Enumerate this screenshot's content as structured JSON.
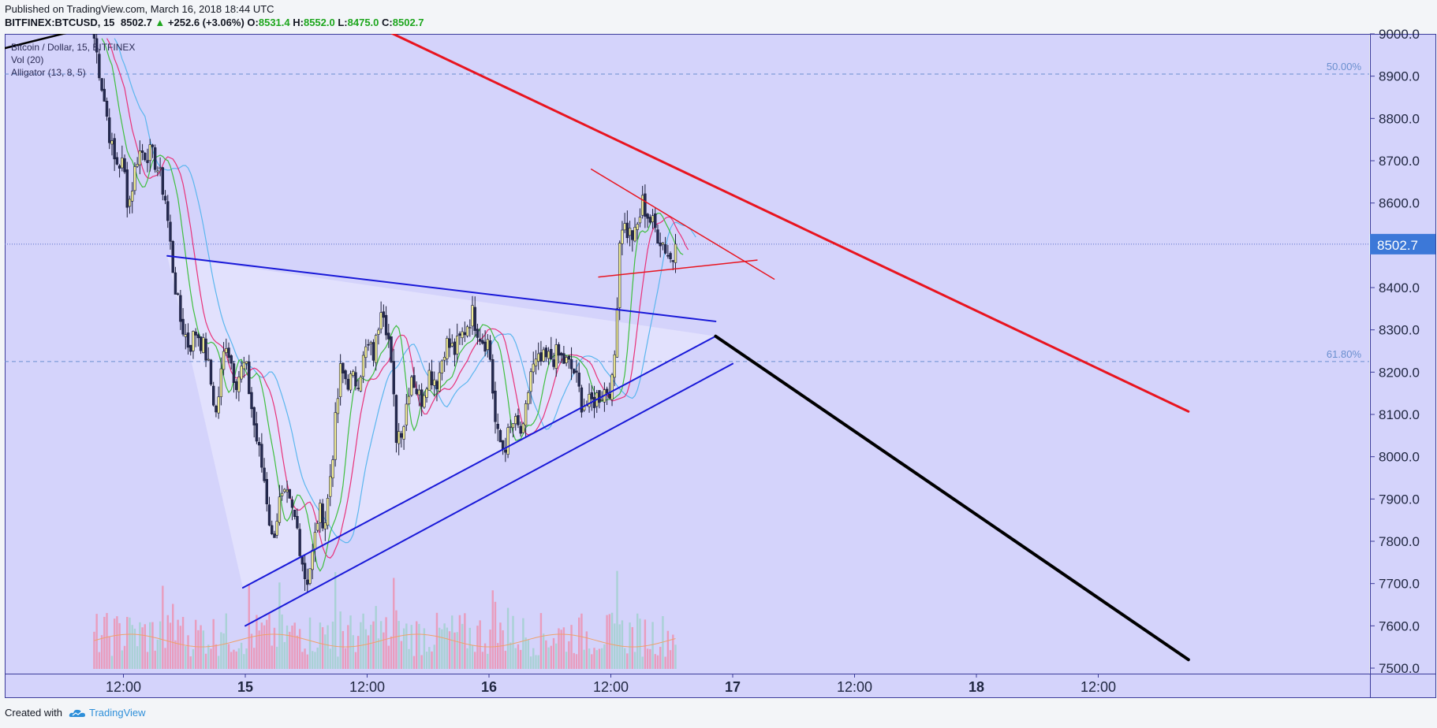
{
  "header": {
    "published": "Published on TradingView.com, March 16, 2018 18:44 UTC",
    "symbol": "BITFINEX:BTCUSD, 15",
    "last": "8502.7",
    "change": "+252.6 (+3.06%)",
    "open_label": "O:",
    "open": "8531.4",
    "high_label": "H:",
    "high": "8552.0",
    "low_label": "L:",
    "low": "8475.0",
    "close_label": "C:",
    "close": "8502.7"
  },
  "footer": {
    "created_with": "Created with",
    "brand": "TradingView"
  },
  "colors": {
    "background": "#d4d3fb",
    "bull_candle": "#f2ee93",
    "bear_candle": "#252a52",
    "red_line": "#e8141f",
    "blue_line": "#1818d8",
    "black_line": "#000000",
    "price_tag": "#3c78d8",
    "jaw": "#5bb6ef",
    "teeth": "#e8327a",
    "lips": "#3fbf3f"
  },
  "chart_data": {
    "type": "candlestick",
    "legend": [
      "Bitcoin / Dollar, 15, BITFINEX",
      "Vol (20)",
      "Alligator (13, 8, 5)"
    ],
    "ylim": [
      7500,
      9000
    ],
    "y_ticks": [
      "9000.0",
      "8900.0",
      "8800.0",
      "8700.0",
      "8600.0",
      "8500.0",
      "8400.0",
      "8300.0",
      "8200.0",
      "8100.0",
      "8000.0",
      "7900.0",
      "7800.0",
      "7700.0",
      "7600.0",
      "7500.0"
    ],
    "y_tick_values": [
      9000,
      8900,
      8800,
      8700,
      8600,
      8500,
      8400,
      8300,
      8200,
      8100,
      8000,
      7900,
      7800,
      7700,
      7600,
      7500
    ],
    "x_ticks": [
      {
        "label": "12:00",
        "t": 0.5,
        "bold": false
      },
      {
        "label": "15",
        "t": 1.0,
        "bold": true
      },
      {
        "label": "12:00",
        "t": 1.5,
        "bold": false
      },
      {
        "label": "16",
        "t": 2.0,
        "bold": true
      },
      {
        "label": "12:00",
        "t": 2.5,
        "bold": false
      },
      {
        "label": "17",
        "t": 3.0,
        "bold": true
      },
      {
        "label": "12:00",
        "t": 3.5,
        "bold": false
      },
      {
        "label": "18",
        "t": 4.0,
        "bold": true
      },
      {
        "label": "12:00",
        "t": 4.5,
        "bold": false
      }
    ],
    "t_range": [
      0.0,
      4.85
    ],
    "last_price": 8502.7,
    "last_price_label": "8502.7",
    "fib_levels": [
      {
        "label": "50.00%",
        "price": 8905
      },
      {
        "label": "61.80%",
        "price": 8225
      }
    ],
    "close_path": [
      [
        0.38,
        8990
      ],
      [
        0.42,
        8850
      ],
      [
        0.46,
        8700
      ],
      [
        0.5,
        8690
      ],
      [
        0.52,
        8590
      ],
      [
        0.56,
        8720
      ],
      [
        0.6,
        8720
      ],
      [
        0.63,
        8700
      ],
      [
        0.67,
        8620
      ],
      [
        0.7,
        8460
      ],
      [
        0.73,
        8330
      ],
      [
        0.77,
        8260
      ],
      [
        0.8,
        8300
      ],
      [
        0.84,
        8240
      ],
      [
        0.88,
        8100
      ],
      [
        0.92,
        8280
      ],
      [
        0.96,
        8180
      ],
      [
        1.0,
        8220
      ],
      [
        1.04,
        8060
      ],
      [
        1.08,
        7940
      ],
      [
        1.11,
        7800
      ],
      [
        1.14,
        7890
      ],
      [
        1.17,
        7900
      ],
      [
        1.21,
        7840
      ],
      [
        1.25,
        7700
      ],
      [
        1.28,
        7780
      ],
      [
        1.3,
        7870
      ],
      [
        1.33,
        7850
      ],
      [
        1.36,
        8020
      ],
      [
        1.39,
        8200
      ],
      [
        1.42,
        8180
      ],
      [
        1.46,
        8180
      ],
      [
        1.5,
        8260
      ],
      [
        1.53,
        8240
      ],
      [
        1.56,
        8380
      ],
      [
        1.59,
        8270
      ],
      [
        1.62,
        8050
      ],
      [
        1.65,
        8080
      ],
      [
        1.68,
        8200
      ],
      [
        1.72,
        8130
      ],
      [
        1.75,
        8200
      ],
      [
        1.79,
        8180
      ],
      [
        1.82,
        8270
      ],
      [
        1.86,
        8250
      ],
      [
        1.9,
        8300
      ],
      [
        1.93,
        8340
      ],
      [
        1.97,
        8280
      ],
      [
        2.0,
        8270
      ],
      [
        2.03,
        8050
      ],
      [
        2.06,
        8020
      ],
      [
        2.1,
        8080
      ],
      [
        2.14,
        8050
      ],
      [
        2.17,
        8200
      ],
      [
        2.2,
        8220
      ],
      [
        2.24,
        8230
      ],
      [
        2.28,
        8240
      ],
      [
        2.32,
        8220
      ],
      [
        2.35,
        8200
      ],
      [
        2.38,
        8130
      ],
      [
        2.41,
        8120
      ],
      [
        2.44,
        8140
      ],
      [
        2.48,
        8160
      ],
      [
        2.51,
        8170
      ],
      [
        2.54,
        8560
      ],
      [
        2.57,
        8530
      ],
      [
        2.6,
        8520
      ],
      [
        2.63,
        8600
      ],
      [
        2.66,
        8560
      ],
      [
        2.69,
        8530
      ],
      [
        2.72,
        8500
      ],
      [
        2.75,
        8460
      ],
      [
        2.77,
        8503
      ]
    ],
    "volume_max": 7,
    "trendlines": [
      {
        "name": "red-downtrend-line",
        "color": "red_line",
        "width": 3,
        "from": [
          1.57,
          9010
        ],
        "to": [
          4.87,
          8107
        ]
      },
      {
        "name": "red-wedge-upper-line",
        "color": "red_line",
        "width": 1.5,
        "from": [
          2.42,
          8680
        ],
        "to": [
          3.17,
          8420
        ]
      },
      {
        "name": "red-wedge-lower-line",
        "color": "red_line",
        "width": 1.5,
        "from": [
          2.45,
          8425
        ],
        "to": [
          3.1,
          8465
        ]
      },
      {
        "name": "blue-triangle-upper-line",
        "color": "blue_line",
        "width": 2,
        "from": [
          0.68,
          8475
        ],
        "to": [
          2.93,
          8320
        ]
      },
      {
        "name": "blue-triangle-lower-line",
        "color": "blue_line",
        "width": 2,
        "from": [
          0.99,
          7690
        ],
        "to": [
          2.93,
          8285
        ]
      },
      {
        "name": "blue-channel-lower-line",
        "color": "blue_line",
        "width": 2,
        "from": [
          1.0,
          7600
        ],
        "to": [
          3.0,
          8220
        ]
      },
      {
        "name": "black-projection-line",
        "color": "black_line",
        "width": 4,
        "from": [
          2.93,
          8285
        ],
        "to": [
          4.87,
          7520
        ]
      },
      {
        "name": "black-prior-line",
        "color": "black_line",
        "width": 2.5,
        "from": [
          -0.03,
          8960
        ],
        "to": [
          0.39,
          9020
        ]
      }
    ],
    "triangle_zone": [
      [
        0.68,
        8475
      ],
      [
        2.93,
        8285
      ],
      [
        0.99,
        7690
      ]
    ]
  }
}
